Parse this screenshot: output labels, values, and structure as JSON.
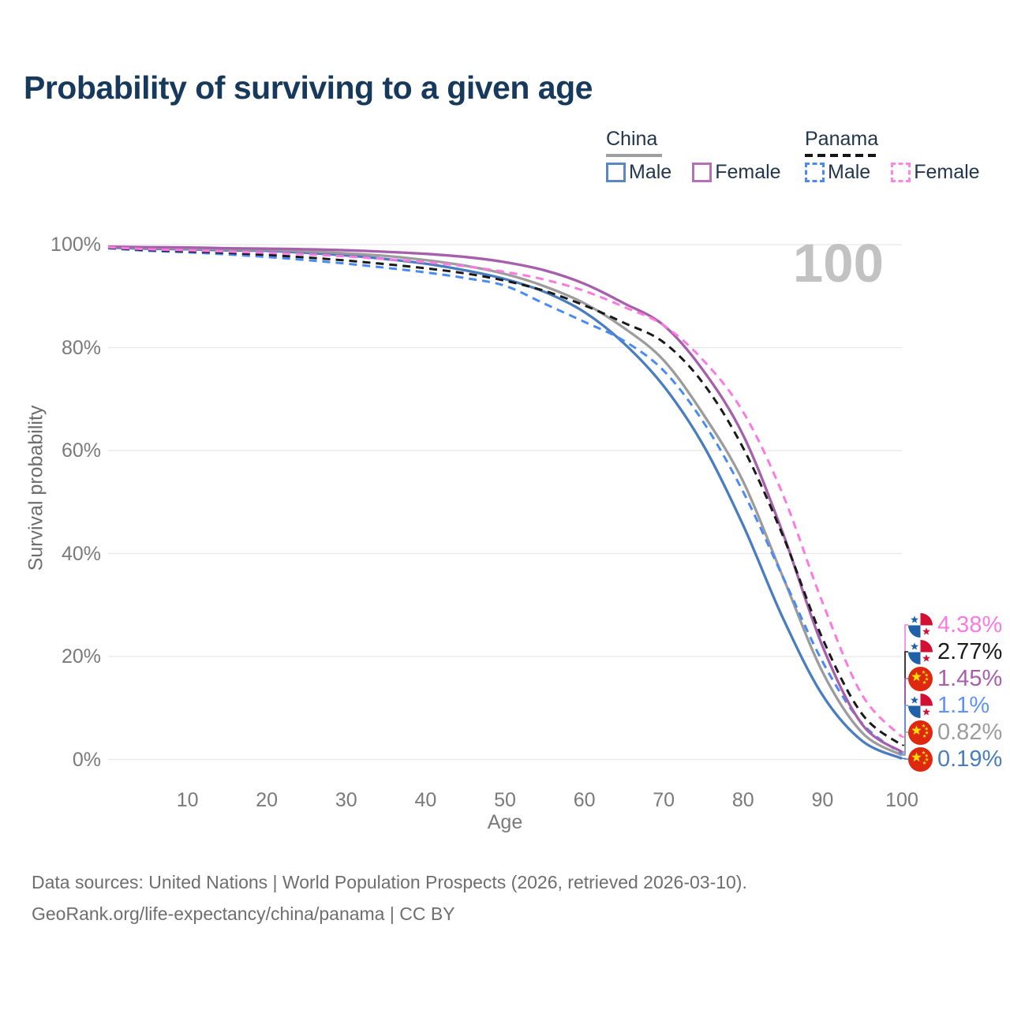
{
  "title": "Probability of surviving to a given age",
  "watermark": "100",
  "legend": {
    "groups": [
      {
        "label": "China",
        "line_style": "solid",
        "underline_color": "#9e9e9e",
        "items": [
          {
            "label": "Male",
            "color": "#5b87c5",
            "dashed": false
          },
          {
            "label": "Female",
            "color": "#b56fb5",
            "dashed": false
          }
        ]
      },
      {
        "label": "Panama",
        "line_style": "dashed",
        "underline_color": "#161616",
        "items": [
          {
            "label": "Male",
            "color": "#4a8af4",
            "dashed": true
          },
          {
            "label": "Female",
            "color": "#ff85e5",
            "dashed": true
          }
        ]
      }
    ]
  },
  "chart_data": {
    "type": "line",
    "title": "Probability of surviving to a given age",
    "xlabel": "Age",
    "ylabel": "Survival probability",
    "xlim": [
      0,
      100
    ],
    "ylim": [
      0,
      100
    ],
    "grid": "horizontal",
    "x_ticks": [
      10,
      20,
      30,
      40,
      50,
      60,
      70,
      80,
      90,
      100
    ],
    "y_ticks": [
      {
        "value": 0,
        "label": "0%"
      },
      {
        "value": 20,
        "label": "20%"
      },
      {
        "value": 40,
        "label": "40%"
      },
      {
        "value": 60,
        "label": "60%"
      },
      {
        "value": 80,
        "label": "80%"
      },
      {
        "value": 100,
        "label": "100%"
      }
    ],
    "ages": [
      0,
      5,
      10,
      15,
      20,
      25,
      30,
      35,
      40,
      45,
      50,
      55,
      60,
      65,
      70,
      75,
      80,
      85,
      90,
      95,
      100
    ],
    "series": [
      {
        "name": "China Male",
        "country": "China",
        "sex": "Male",
        "color": "#4a7dbf",
        "dashed": false,
        "values": [
          99.4,
          99.2,
          99.1,
          98.9,
          98.8,
          98.4,
          97.9,
          97.2,
          96.3,
          95.0,
          93.3,
          90.8,
          86.9,
          80.8,
          72.5,
          61.0,
          45.5,
          27.5,
          12.5,
          3.6,
          0.19
        ]
      },
      {
        "name": "China",
        "country": "China",
        "sex": "Both",
        "color": "#9c9c9c",
        "dashed": false,
        "values": [
          99.5,
          99.35,
          99.25,
          99.1,
          99.0,
          98.7,
          98.3,
          97.8,
          97.0,
          95.9,
          94.3,
          91.9,
          88.6,
          83.8,
          77.5,
          67.0,
          54.0,
          35.5,
          17.0,
          5.2,
          0.82
        ]
      },
      {
        "name": "Panama Male",
        "country": "Panama",
        "sex": "Male",
        "color": "#4a8af4",
        "dashed": true,
        "values": [
          99.3,
          98.8,
          98.5,
          98.1,
          97.6,
          97.0,
          96.3,
          95.5,
          94.6,
          93.5,
          92.0,
          88.5,
          85.0,
          81.3,
          75.5,
          65.5,
          52.0,
          35.5,
          19.0,
          7.0,
          1.1
        ]
      },
      {
        "name": "China Female",
        "country": "China",
        "sex": "Female",
        "color": "#a55fab",
        "dashed": false,
        "values": [
          99.6,
          99.5,
          99.45,
          99.3,
          99.2,
          99.1,
          98.9,
          98.6,
          98.2,
          97.6,
          96.6,
          95.0,
          92.4,
          88.6,
          84.3,
          75.5,
          63.0,
          44.0,
          22.0,
          6.8,
          1.45
        ]
      },
      {
        "name": "Panama",
        "country": "Panama",
        "sex": "Both",
        "color": "#1a1a1a",
        "dashed": true,
        "values": [
          99.4,
          98.95,
          98.7,
          98.4,
          98.0,
          97.5,
          96.9,
          96.2,
          95.4,
          94.4,
          93.0,
          91.0,
          88.2,
          84.8,
          81.0,
          73.0,
          60.5,
          43.5,
          23.5,
          8.8,
          2.77
        ]
      },
      {
        "name": "Panama Female",
        "country": "Panama",
        "sex": "Female",
        "color": "#fb7ae0",
        "dashed": true,
        "values": [
          99.5,
          99.1,
          98.9,
          98.65,
          98.4,
          98.1,
          97.7,
          97.2,
          96.6,
          95.8,
          94.7,
          93.2,
          91.0,
          87.9,
          84.3,
          77.5,
          67.5,
          51.5,
          30.5,
          12.5,
          4.38
        ]
      }
    ],
    "end_labels": [
      {
        "series": "Panama Female",
        "flag": "panama",
        "text": "4.38%",
        "value": 4.38,
        "color": "#fb7ae0"
      },
      {
        "series": "Panama",
        "flag": "panama",
        "text": "2.77%",
        "value": 2.77,
        "color": "#1a1a1a"
      },
      {
        "series": "China Female",
        "flag": "china",
        "text": "1.45%",
        "value": 1.45,
        "color": "#a55fab"
      },
      {
        "series": "Panama Male",
        "flag": "panama",
        "text": "1.1%",
        "value": 1.1,
        "color": "#5f93f5"
      },
      {
        "series": "China",
        "flag": "china",
        "text": "0.82%",
        "value": 0.82,
        "color": "#9c9c9c"
      },
      {
        "series": "China Male",
        "flag": "china",
        "text": "0.19%",
        "value": 0.19,
        "color": "#4a7dbf"
      }
    ]
  },
  "footer": {
    "line1": "Data sources: United Nations | World Population Prospects (2026, retrieved 2026-03-10).",
    "line2": "GeoRank.org/life-expectancy/china/panama | CC BY"
  }
}
